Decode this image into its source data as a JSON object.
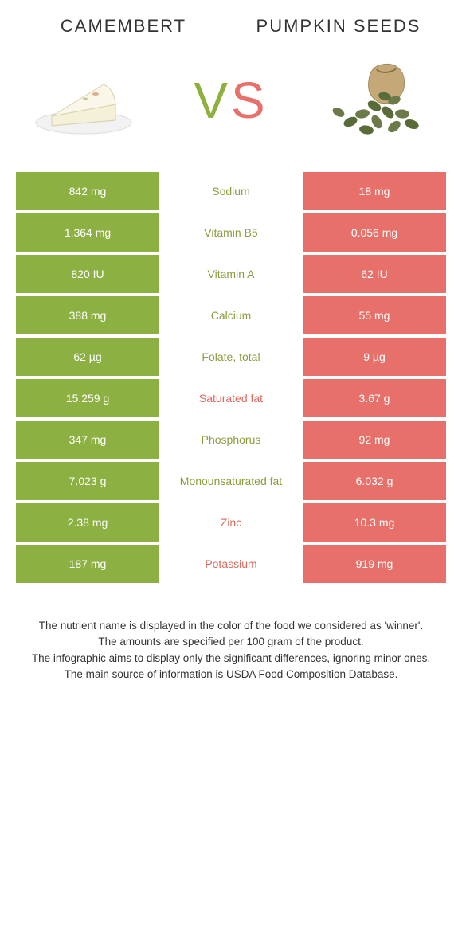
{
  "colors": {
    "left": "#8db043",
    "right": "#e8706a",
    "left_text": "#8a9e3f",
    "right_text": "#d96a5f",
    "row_gap": "#ffffff"
  },
  "header": {
    "left_title": "CAMEMBERT",
    "right_title": "PUMPKIN SEEDS",
    "vs_v": "V",
    "vs_s": "S"
  },
  "rows": [
    {
      "left": "842 mg",
      "label": "Sodium",
      "right": "18 mg",
      "winner": "left"
    },
    {
      "left": "1.364 mg",
      "label": "Vitamin B5",
      "right": "0.056 mg",
      "winner": "left"
    },
    {
      "left": "820 IU",
      "label": "Vitamin A",
      "right": "62 IU",
      "winner": "left"
    },
    {
      "left": "388 mg",
      "label": "Calcium",
      "right": "55 mg",
      "winner": "left"
    },
    {
      "left": "62 µg",
      "label": "Folate, total",
      "right": "9 µg",
      "winner": "left"
    },
    {
      "left": "15.259 g",
      "label": "Saturated fat",
      "right": "3.67 g",
      "winner": "right"
    },
    {
      "left": "347 mg",
      "label": "Phosphorus",
      "right": "92 mg",
      "winner": "left"
    },
    {
      "left": "7.023 g",
      "label": "Monounsaturated fat",
      "right": "6.032 g",
      "winner": "left"
    },
    {
      "left": "2.38 mg",
      "label": "Zinc",
      "right": "10.3 mg",
      "winner": "right"
    },
    {
      "left": "187 mg",
      "label": "Potassium",
      "right": "919 mg",
      "winner": "right"
    }
  ],
  "footer": {
    "line1": "The nutrient name is displayed in the color of the food we considered as 'winner'.",
    "line2": "The amounts are specified per 100 gram of the product.",
    "line3": "The infographic aims to display only the significant differences, ignoring minor ones.",
    "line4": "The main source of information is USDA Food Composition Database."
  }
}
